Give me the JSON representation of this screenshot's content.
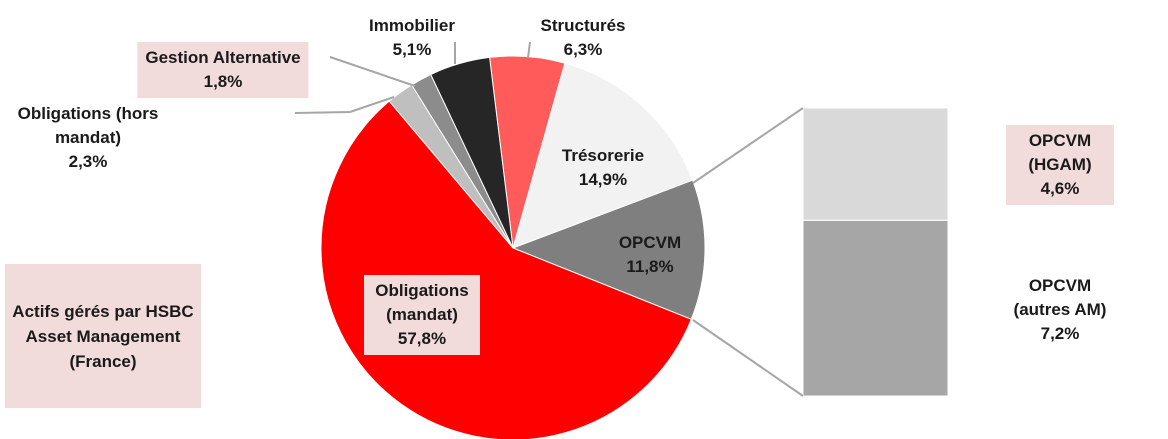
{
  "chart_data": {
    "type": "pie-of-bar",
    "annotation": "Actifs gérés par HSBC Asset Management (France)",
    "slices": [
      {
        "name": "Structurés",
        "value": 6.3,
        "value_label": "6,3%",
        "color": "#ff5b5b",
        "highlight": false
      },
      {
        "name": "Trésorerie",
        "value": 14.9,
        "value_label": "14,9%",
        "color": "#f2f2f2",
        "highlight": false
      },
      {
        "name": "OPCVM",
        "value": 11.8,
        "value_label": "11,8%",
        "color": "#7f7f7f",
        "highlight": false
      },
      {
        "name": "Obligations (mandat)",
        "value": 57.8,
        "value_label": "57,8%",
        "color": "#ff0000",
        "highlight": true
      },
      {
        "name": "Obligations (hors mandat)",
        "value": 2.3,
        "value_label": "2,3%",
        "color": "#bfbfbf",
        "highlight": false
      },
      {
        "name": "Gestion Alternative",
        "value": 1.8,
        "value_label": "1,8%",
        "color": "#8c8c8c",
        "highlight": true
      },
      {
        "name": "Immobilier",
        "value": 5.1,
        "value_label": "5,1%",
        "color": "#262626",
        "highlight": false
      }
    ],
    "bar": [
      {
        "name": "OPCVM (HGAM)",
        "value": 4.6,
        "value_label": "4,6%",
        "color": "#d9d9d9",
        "highlight": true
      },
      {
        "name": "OPCVM (autres AM)",
        "value": 7.2,
        "value_label": "7,2%",
        "color": "#a6a6a6",
        "highlight": false
      }
    ]
  }
}
